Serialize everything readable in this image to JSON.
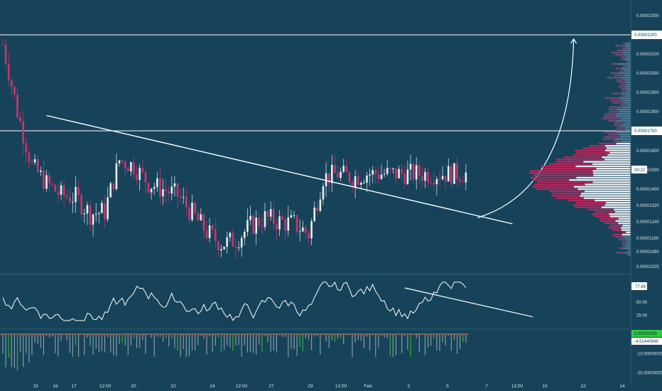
{
  "colors": {
    "background": "#16435a",
    "up": "#e8edf0",
    "down": "#d1336a",
    "line": "#ffffff",
    "volume_profile_up": "#e8edf0",
    "volume_profile_down": "#b3265c",
    "volume_profile_dim": "#4b7c93",
    "histogram_up": "#34b233",
    "histogram_down": "#8a9aa3",
    "label_green": "#2ecc40"
  },
  "chart_data": [
    {
      "type": "candlestick",
      "panel": "price",
      "ylim": [
        1e-05,
        2.33e-05
      ],
      "price_ticks": [
        "0.00002300",
        "0.00002100",
        "0.00002000",
        "0.00001900",
        "0.00001800",
        "0.00001600",
        "0.00001500",
        "0.00001400",
        "0.00001320",
        "0.00001240",
        "0.00001160",
        "0.00001090",
        "0.00001025"
      ],
      "price_tick_values": [
        2.3e-05,
        2.1e-05,
        2e-05,
        1.9e-05,
        1.8e-05,
        1.6e-05,
        1.5e-05,
        1.4e-05,
        1.32e-05,
        1.24e-05,
        1.16e-05,
        1.09e-05,
        1.025e-05
      ],
      "highlighted_levels": [
        {
          "label": "0.00002200",
          "value": 2.2e-05
        },
        {
          "label": "0.00001700",
          "value": 1.7e-05
        }
      ],
      "last_price_label": "00:22",
      "series": [
        {
          "name": "close",
          "x_index": [
            0,
            5,
            10,
            15,
            20,
            25,
            30,
            35,
            40,
            45,
            50,
            55,
            60,
            65,
            70,
            75,
            80,
            85,
            90,
            95,
            100,
            105,
            110,
            115,
            120,
            125,
            130,
            135,
            140,
            145,
            150,
            155,
            160
          ],
          "values": [
            2.15e-05,
            1.8e-05,
            1.52e-05,
            1.43e-05,
            1.37e-05,
            1.36e-05,
            1.28e-05,
            1.29e-05,
            1.55e-05,
            1.52e-05,
            1.43e-05,
            1.4e-05,
            1.37e-05,
            1.28e-05,
            1.19e-05,
            1.13e-05,
            1.15e-05,
            1.22e-05,
            1.26e-05,
            1.24e-05,
            1.23e-05,
            1.18e-05,
            1.46e-05,
            1.48e-05,
            1.46e-05,
            1.48e-05,
            1.48e-05,
            1.48e-05,
            1.48e-05,
            1.48e-05,
            1.48e-05,
            1.48e-05,
            1.48e-05
          ]
        }
      ],
      "trendline": {
        "start": [
          15,
          1.78e-05
        ],
        "end": [
          175,
          1.23e-05
        ]
      },
      "projection_arrow": {
        "start": [
          163,
          1.26e-05
        ],
        "end": [
          196,
          2.2e-05
        ]
      }
    },
    {
      "type": "line",
      "panel": "oscillator",
      "ylim": [
        0,
        100
      ],
      "ticks": [
        "50.00",
        "25.00"
      ],
      "tick_values": [
        50,
        25
      ],
      "current_label": "77.69",
      "current_value": 77.69,
      "trendline": {
        "start": [
          138,
          77
        ],
        "end": [
          182,
          22
        ]
      }
    },
    {
      "type": "bar",
      "panel": "histogram",
      "ylim": [
        -22,
        1
      ],
      "ticks": [
        "-10.00000000",
        "-20.00000000"
      ],
      "tick_values": [
        -10,
        -20
      ],
      "current_labels": [
        "0.00000008",
        "-4.51440946"
      ]
    }
  ],
  "time_axis": [
    "15",
    "16",
    "17",
    "12:00",
    "20",
    "22",
    "24",
    "12:00",
    "27",
    "29",
    "12:00",
    "Feb",
    "3",
    "5",
    "7",
    "12:00",
    "10",
    "12",
    "14"
  ]
}
